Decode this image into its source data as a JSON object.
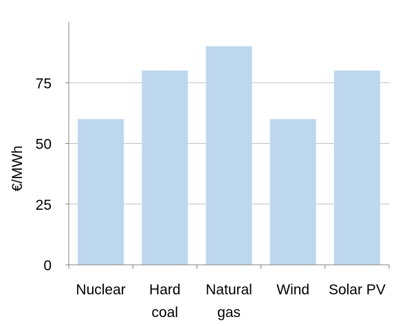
{
  "chart_data": {
    "type": "bar",
    "title": "",
    "xlabel": "",
    "ylabel": "€/MWh",
    "categories": [
      [
        "Nuclear"
      ],
      [
        "Hard",
        "coal"
      ],
      [
        "Natural",
        "gas"
      ],
      [
        "Wind"
      ],
      [
        "Solar PV"
      ]
    ],
    "values": [
      60,
      80,
      90,
      60,
      80
    ],
    "ylim": [
      0,
      100
    ],
    "yticks": [
      0,
      25,
      50,
      75
    ],
    "grid": true,
    "legend": "none",
    "bar_color": "#BDD7EE",
    "grid_color": "#BFBFBF",
    "axis_color": "#808080"
  }
}
